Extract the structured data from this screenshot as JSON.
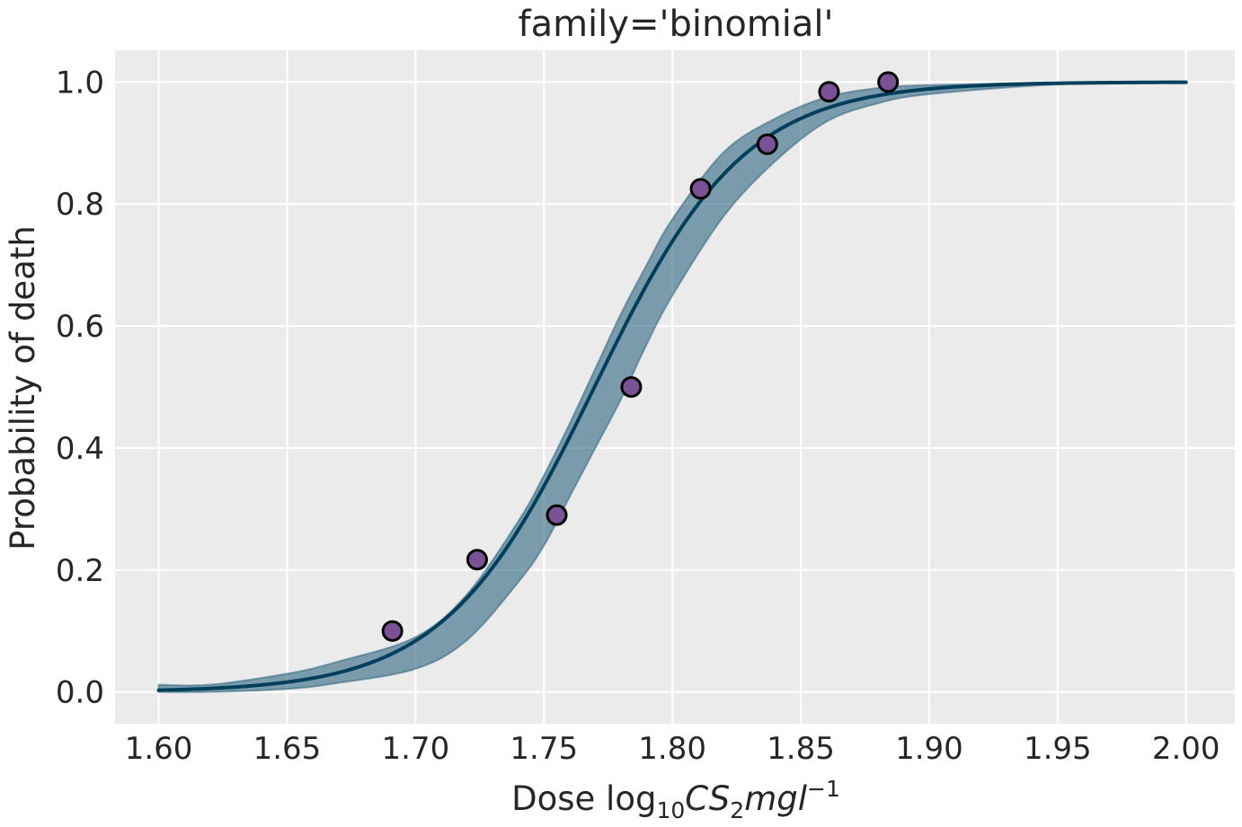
{
  "chart_data": {
    "type": "line",
    "title": "family='binomial'",
    "xlabel": {
      "prefix": "Dose log",
      "sub1": "10",
      "cs": "CS",
      "sub2": "2",
      "mgl": "mgl",
      "sup": "−1"
    },
    "ylabel": "Probability of death",
    "xlim": [
      1.583,
      2.019
    ],
    "ylim": [
      -0.052,
      1.052
    ],
    "xticks": [
      1.6,
      1.65,
      1.7,
      1.75,
      1.8,
      1.85,
      1.9,
      1.95,
      2.0
    ],
    "xtick_labels": [
      "1.60",
      "1.65",
      "1.70",
      "1.75",
      "1.80",
      "1.85",
      "1.90",
      "1.95",
      "2.00"
    ],
    "yticks": [
      0.0,
      0.2,
      0.4,
      0.6,
      0.8,
      1.0
    ],
    "ytick_labels": [
      "0.0",
      "0.2",
      "0.4",
      "0.6",
      "0.8",
      "1.0"
    ],
    "grid": true,
    "series": [
      {
        "kind": "scatter",
        "x": [
          1.691,
          1.724,
          1.755,
          1.784,
          1.811,
          1.837,
          1.861,
          1.884
        ],
        "y": [
          0.1,
          0.217,
          0.29,
          0.5,
          0.825,
          0.898,
          0.984,
          1.0
        ]
      },
      {
        "kind": "line",
        "curve": "logistic",
        "x_range": [
          1.6,
          2.0
        ],
        "intercept": -60.7,
        "slope": 34.3
      },
      {
        "kind": "band",
        "x": [
          1.6,
          1.62,
          1.65,
          1.67,
          1.7,
          1.72,
          1.74,
          1.75,
          1.76,
          1.77,
          1.78,
          1.79,
          1.8,
          1.82,
          1.84,
          1.86,
          1.88,
          1.9,
          1.95,
          2.0
        ],
        "lower": [
          0.0,
          0.0,
          0.005,
          0.015,
          0.038,
          0.085,
          0.18,
          0.24,
          0.32,
          0.4,
          0.48,
          0.57,
          0.65,
          0.78,
          0.87,
          0.935,
          0.965,
          0.98,
          0.996,
          1.0
        ],
        "upper": [
          0.012,
          0.012,
          0.03,
          0.05,
          0.09,
          0.16,
          0.28,
          0.355,
          0.44,
          0.53,
          0.62,
          0.7,
          0.775,
          0.885,
          0.94,
          0.975,
          0.99,
          0.995,
          0.999,
          1.0
        ]
      }
    ],
    "colors": {
      "background": "#ebebeb",
      "grid": "#ffffff",
      "line": "#003f5c",
      "band": "#2f6580",
      "point_fill": "#7a5195",
      "point_edge": "#000000",
      "text": "#262626"
    }
  }
}
